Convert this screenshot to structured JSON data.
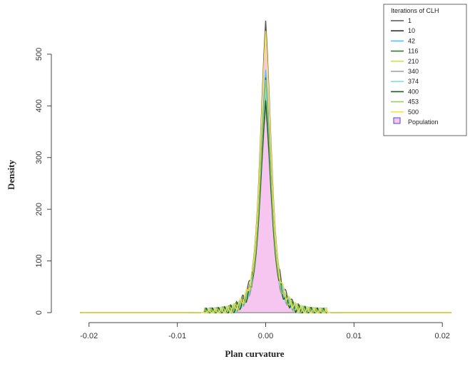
{
  "chart_data": {
    "type": "line",
    "xlabel": "Plan curvature",
    "ylabel": "Density",
    "xlim": [
      -0.022,
      0.022
    ],
    "ylim": [
      0,
      580
    ],
    "x_ticks": [
      "-0.02",
      "-0.01",
      "0.00",
      "0.01",
      "0.02"
    ],
    "x_tick_values": [
      -0.02,
      -0.01,
      0.0,
      0.01,
      0.02
    ],
    "y_ticks": [
      "0",
      "100",
      "200",
      "300",
      "400",
      "500"
    ],
    "y_tick_values": [
      0,
      100,
      200,
      300,
      400,
      500
    ],
    "legend": {
      "title": "Iterations of CLH",
      "placement": "top-right",
      "entries": [
        "1",
        "10",
        "42",
        "116",
        "210",
        "340",
        "374",
        "400",
        "453",
        "500"
      ],
      "population_label": "Population"
    },
    "population": {
      "name": "Population",
      "color": "#f7c6f0",
      "peak": 565
    },
    "series": [
      {
        "name": "1",
        "color": "#555555",
        "peak": 565
      },
      {
        "name": "10",
        "color": "#333333",
        "peak": 420
      },
      {
        "name": "42",
        "color": "#4fc3f7",
        "peak": 470
      },
      {
        "name": "116",
        "color": "#2e7d32",
        "peak": 455
      },
      {
        "name": "210",
        "color": "#c6e84a",
        "peak": 440
      },
      {
        "name": "340",
        "color": "#9e9e9e",
        "peak": 400
      },
      {
        "name": "374",
        "color": "#80deea",
        "peak": 430
      },
      {
        "name": "400",
        "color": "#1b5e20",
        "peak": 410
      },
      {
        "name": "453",
        "color": "#9ccc65",
        "peak": 450
      },
      {
        "name": "500",
        "color": "#f9e04b",
        "peak": 545
      }
    ],
    "colors": {
      "axis": "#444444",
      "legend_border": "#666666"
    }
  }
}
